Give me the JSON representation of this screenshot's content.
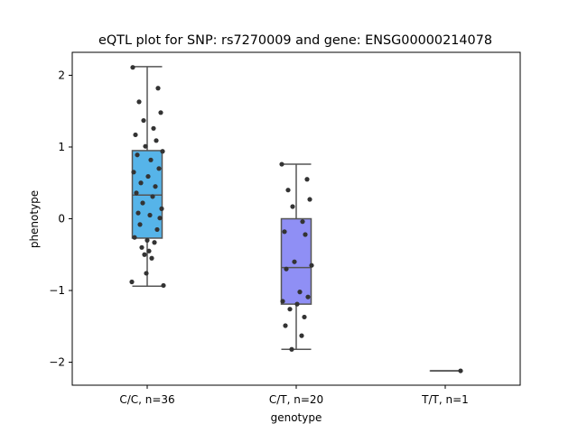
{
  "chart_data": {
    "type": "box",
    "title": "eQTL plot for SNP: rs7270009 and gene: ENSG00000214078",
    "xlabel": "genotype",
    "ylabel": "phenotype",
    "ylim": [
      -2.32,
      2.32
    ],
    "yticks": [
      -2,
      -1,
      0,
      1,
      2
    ],
    "ytick_labels": [
      "−2",
      "−1",
      "0",
      "1",
      "2"
    ],
    "grid": false,
    "legend": "none",
    "categories": [
      "C/C, n=36",
      "C/T, n=20",
      "T/T, n=1"
    ],
    "groups": [
      {
        "category": "C/C, n=36",
        "color": "#56B4E9",
        "box": {
          "whisker_low": -0.94,
          "q1": -0.27,
          "median": 0.33,
          "q3": 0.95,
          "whisker_high": 2.12
        },
        "points": [
          2.11,
          1.82,
          1.63,
          1.48,
          1.37,
          1.26,
          1.17,
          1.09,
          1.01,
          0.94,
          0.89,
          0.82,
          0.7,
          0.65,
          0.59,
          0.5,
          0.45,
          0.36,
          0.31,
          0.22,
          0.14,
          0.08,
          0.05,
          0.01,
          -0.08,
          -0.15,
          -0.26,
          -0.3,
          -0.33,
          -0.4,
          -0.45,
          -0.5,
          -0.55,
          -0.76,
          -0.88,
          -0.93
        ]
      },
      {
        "category": "C/T, n=20",
        "color": "#8F8FF5",
        "box": {
          "whisker_low": -1.82,
          "q1": -1.19,
          "median": -0.68,
          "q3": 0.0,
          "whisker_high": 0.76
        },
        "points": [
          0.76,
          0.55,
          0.4,
          0.27,
          0.17,
          -0.04,
          -0.18,
          -0.22,
          -0.6,
          -0.65,
          -0.7,
          -1.02,
          -1.09,
          -1.15,
          -1.19,
          -1.26,
          -1.37,
          -1.49,
          -1.63,
          -1.82
        ]
      },
      {
        "category": "T/T, n=1",
        "color": "#B48CF0",
        "box": {
          "whisker_low": -2.12,
          "q1": -2.12,
          "median": -2.12,
          "q3": -2.12,
          "whisker_high": -2.12
        },
        "points": [
          -2.12
        ]
      }
    ]
  }
}
